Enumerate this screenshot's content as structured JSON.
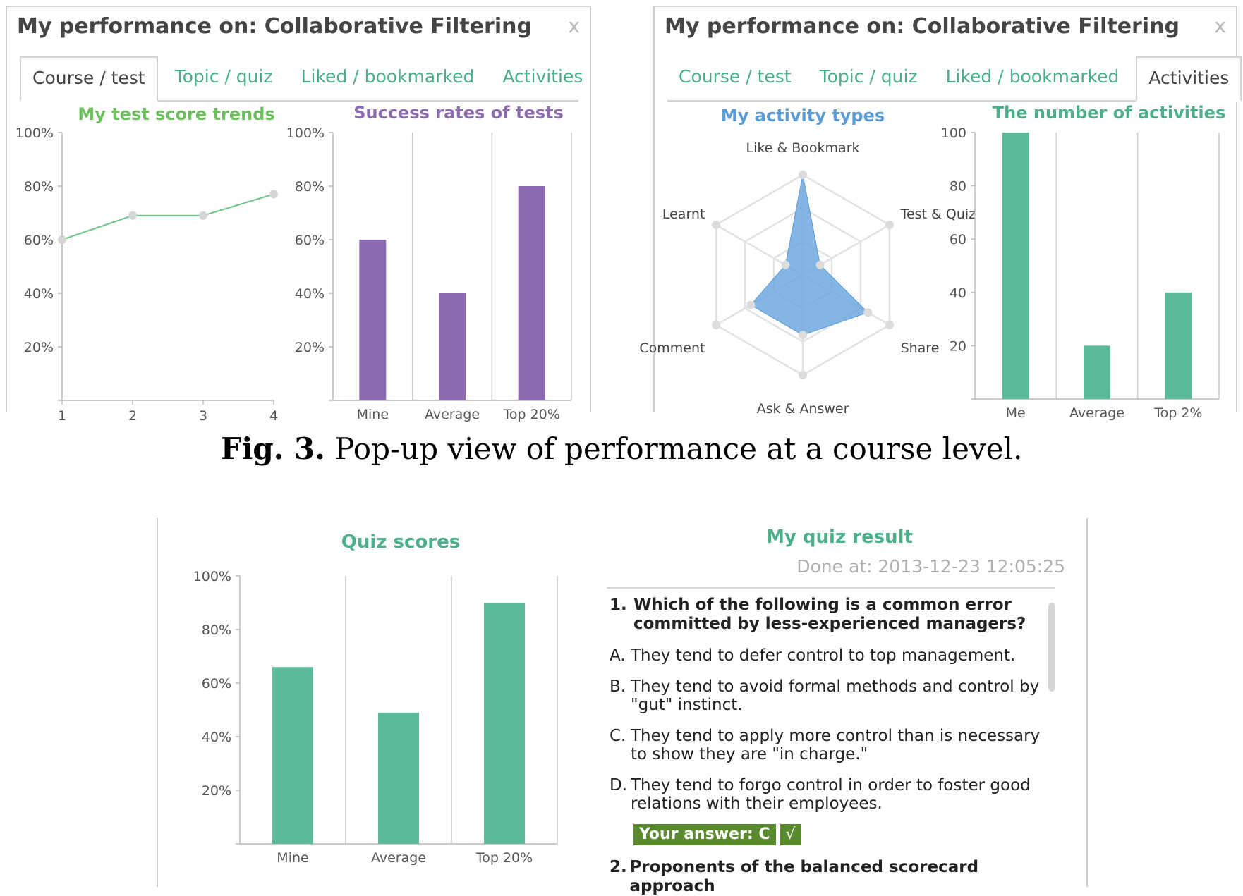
{
  "panels": {
    "left": {
      "title": "My performance on: Collaborative Filtering",
      "close_label": "x",
      "tabs": [
        {
          "label": "Course / test",
          "active": true
        },
        {
          "label": "Topic / quiz",
          "active": false
        },
        {
          "label": "Liked / bookmarked",
          "active": false
        },
        {
          "label": "Activities",
          "active": false
        }
      ]
    },
    "right": {
      "title": "My performance on: Collaborative Filtering",
      "close_label": "x",
      "tabs": [
        {
          "label": "Course / test",
          "active": false
        },
        {
          "label": "Topic / quiz",
          "active": false
        },
        {
          "label": "Liked / bookmarked",
          "active": false
        },
        {
          "label": "Activities",
          "active": true
        }
      ]
    }
  },
  "caption": {
    "fig_label": "Fig. 3.",
    "text": "Pop-up view of performance at a course level."
  },
  "quiz": {
    "title": "My quiz result",
    "done_at": "Done at: 2013-12-23 12:05:25",
    "q1_num": "1.",
    "q1_text": "Which of the following is a common error committed by less-experienced managers?",
    "options": [
      {
        "letter": "A.",
        "text": "They tend to defer control to top management."
      },
      {
        "letter": "B.",
        "text": "They tend to avoid formal methods and control by \"gut\" instinct."
      },
      {
        "letter": "C.",
        "text": "They tend to apply more control than is necessary to show they are \"in charge.\""
      },
      {
        "letter": "D.",
        "text": "They tend to forgo control in order to foster good relations with their employees."
      }
    ],
    "answer_label": "Your answer: C",
    "answer_mark": "√",
    "q2_num": "2.",
    "q2_text": "Proponents of the balanced scorecard approach"
  },
  "colors": {
    "green": "#5bba9b",
    "purple": "#8c6bb1",
    "blue": "#6fa8e0",
    "accent_text": "#4caf8a",
    "line": "#6cc48a"
  },
  "chart_data": [
    {
      "type": "line",
      "title": "My test score trends",
      "x": [
        1,
        2,
        3,
        4
      ],
      "values": [
        60,
        69,
        69,
        77
      ],
      "ylim": [
        0,
        100
      ],
      "yticks": [
        "20%",
        "40%",
        "60%",
        "80%",
        "100%"
      ],
      "xticks": [
        "1",
        "2",
        "3",
        "4"
      ]
    },
    {
      "type": "bar",
      "title": "Success rates of tests",
      "categories": [
        "Mine",
        "Average",
        "Top 20%"
      ],
      "values": [
        60,
        40,
        80
      ],
      "ylim": [
        0,
        100
      ],
      "yticks": [
        "20%",
        "40%",
        "60%",
        "80%",
        "100%"
      ]
    },
    {
      "type": "radar",
      "title": "My activity types",
      "axes": [
        "Like & Bookmark",
        "Test & Quiz",
        "Share",
        "Ask & Answer",
        "Comment",
        "Learnt"
      ],
      "values": [
        1.0,
        0.2,
        0.75,
        0.6,
        0.6,
        0.2
      ],
      "max": 1.0
    },
    {
      "type": "bar",
      "title": "The number of activities",
      "categories": [
        "Me",
        "Average",
        "Top 2%"
      ],
      "values": [
        100,
        20,
        40
      ],
      "ylim": [
        0,
        100
      ],
      "yticks": [
        "20",
        "40",
        "60",
        "80",
        "100"
      ]
    },
    {
      "type": "bar",
      "title": "Quiz scores",
      "categories": [
        "Mine",
        "Average",
        "Top 20%"
      ],
      "values": [
        66,
        49,
        90
      ],
      "ylim": [
        0,
        100
      ],
      "yticks": [
        "20%",
        "40%",
        "60%",
        "80%",
        "100%"
      ]
    }
  ]
}
